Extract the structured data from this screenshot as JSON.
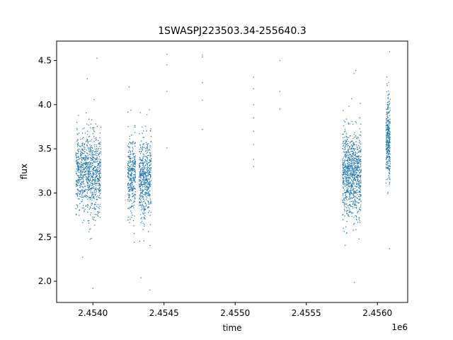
{
  "chart_data": {
    "type": "scatter",
    "title": "1SWASPJ223503.34-255640.3",
    "xlabel": "time",
    "ylabel": "flux",
    "x_offset_label": "1e6",
    "xlim": [
      2453745,
      2456213
    ],
    "ylim": [
      1.76,
      4.72
    ],
    "x_ticks": [
      2.454,
      2.4545,
      2.455,
      2.4555,
      2.456
    ],
    "x_tick_labels": [
      "2.4540",
      "2.4545",
      "2.4550",
      "2.4555",
      "2.4560"
    ],
    "y_ticks": [
      2.0,
      2.5,
      3.0,
      3.5,
      4.0,
      4.5
    ],
    "y_tick_labels": [
      "2.0",
      "2.5",
      "3.0",
      "3.5",
      "4.0",
      "4.5"
    ],
    "grid": false,
    "marker_color": "#1f77b4",
    "clusters": [
      {
        "x_start": 2453880,
        "x_end": 2454055,
        "center": 3.22,
        "spread": 0.22,
        "n": 900,
        "min": 1.92,
        "max": 4.55
      },
      {
        "x_start": 2454245,
        "x_end": 2454300,
        "center": 3.2,
        "spread": 0.22,
        "n": 330,
        "min": 2.0,
        "max": 4.2
      },
      {
        "x_start": 2454325,
        "x_end": 2454410,
        "center": 3.15,
        "spread": 0.22,
        "n": 520,
        "min": 1.9,
        "max": 4.25
      },
      {
        "x_start": 2455755,
        "x_end": 2455885,
        "center": 3.22,
        "spread": 0.24,
        "n": 900,
        "min": 1.95,
        "max": 4.5
      },
      {
        "x_start": 2456060,
        "x_end": 2456090,
        "center": 3.62,
        "spread": 0.22,
        "n": 320,
        "min": 2.28,
        "max": 4.6
      }
    ],
    "sparse_points": [
      {
        "x": 2454520,
        "y": 3.51
      },
      {
        "x": 2454520,
        "y": 4.15
      },
      {
        "x": 2454520,
        "y": 4.45
      },
      {
        "x": 2454520,
        "y": 4.57
      },
      {
        "x": 2454770,
        "y": 4.56
      },
      {
        "x": 2454770,
        "y": 4.25
      },
      {
        "x": 2454770,
        "y": 4.05
      },
      {
        "x": 2454770,
        "y": 3.72
      },
      {
        "x": 2454770,
        "y": 4.54
      },
      {
        "x": 2455130,
        "y": 4.31
      },
      {
        "x": 2455130,
        "y": 4.18
      },
      {
        "x": 2455130,
        "y": 4.0
      },
      {
        "x": 2455130,
        "y": 3.85
      },
      {
        "x": 2455130,
        "y": 3.7
      },
      {
        "x": 2455130,
        "y": 3.55
      },
      {
        "x": 2455130,
        "y": 3.38
      },
      {
        "x": 2455130,
        "y": 3.3
      },
      {
        "x": 2455315,
        "y": 4.5
      },
      {
        "x": 2455315,
        "y": 4.15
      },
      {
        "x": 2455315,
        "y": 3.95
      }
    ]
  }
}
